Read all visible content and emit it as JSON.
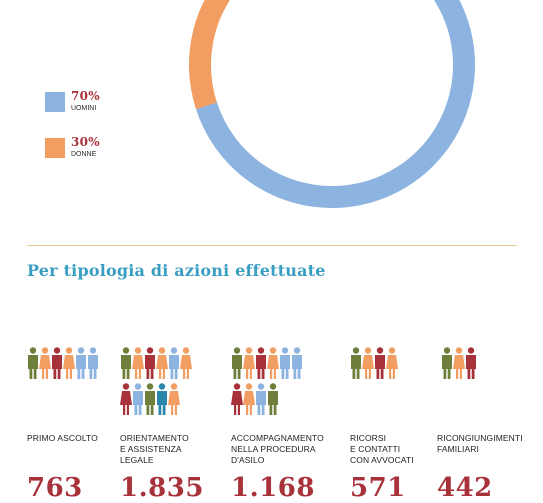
{
  "gender": {
    "men": {
      "percent": "70%",
      "label": "UOMINI",
      "value": 70,
      "color": "#8db3e0"
    },
    "women": {
      "percent": "30%",
      "label": "DONNE",
      "value": 30,
      "color": "#f29e63"
    }
  },
  "section_title": "Per tipologia di azioni effettuate",
  "figure_colors": [
    "#6e7f3b",
    "#f29e63",
    "#a8323a",
    "#f29e63",
    "#8db3e0",
    "#2a86ab"
  ],
  "actions": [
    {
      "label_lines": [
        "PRIMO ASCOLTO"
      ],
      "value": "763"
    },
    {
      "label_lines": [
        "ORIENTAMENTO",
        "E ASSISTENZA",
        "LEGALE"
      ],
      "value": "1.835"
    },
    {
      "label_lines": [
        "ACCOMPAGNAMENTO",
        "NELLA PROCEDURA",
        "D'ASILO"
      ],
      "value": "1.168"
    },
    {
      "label_lines": [
        "RICORSI",
        "E CONTATTI",
        "CON AVVOCATI"
      ],
      "value": "571"
    },
    {
      "label_lines": [
        "RICONGIUNGIMENTI",
        "FAMILIARI"
      ],
      "value": "442"
    }
  ]
}
